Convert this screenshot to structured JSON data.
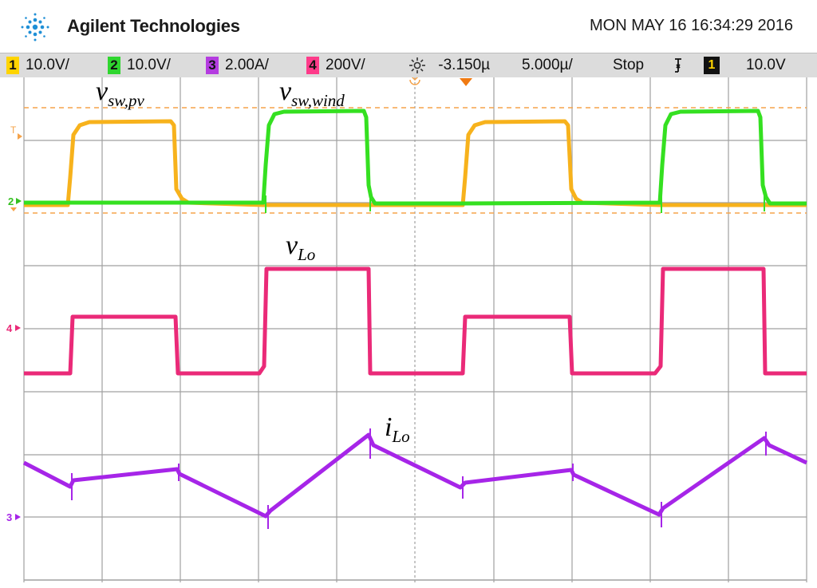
{
  "header": {
    "brand": "Agilent Technologies",
    "datetime": "MON MAY 16 16:34:29 2016",
    "logo_icon": "agilent-spark-logo"
  },
  "status_bar": {
    "ch1": {
      "num": "1",
      "scale": "10.0V/",
      "color": "#ffd400"
    },
    "ch2": {
      "num": "2",
      "scale": "10.0V/",
      "color": "#2fd62f"
    },
    "ch3": {
      "num": "3",
      "scale": "2.00A/",
      "color": "#b43ce0"
    },
    "ch4": {
      "num": "4",
      "scale": "200V/",
      "color": "#ff3b8a"
    },
    "delay_icon": "sun-icon",
    "delay": "-3.150µ",
    "timebase": "5.000µ/",
    "run_state": "Stop",
    "trigger_slope_icon": "falling-edge-icon",
    "trigger_channel": "1",
    "trigger_level": "10.0V"
  },
  "labels": {
    "vsw_pv": {
      "main": "v",
      "sub": "sw,pv"
    },
    "vsw_wind": {
      "main": "v",
      "sub": "sw,wind"
    },
    "vlo": {
      "main": "v",
      "sub": "Lo"
    },
    "ilo": {
      "main": "i",
      "sub": "Lo"
    }
  },
  "markers": {
    "trigger": "T",
    "ch2_ground": "2",
    "ch4_ground": "4",
    "ch3_ground": "3"
  },
  "colors": {
    "ch1": "#f7b21c",
    "ch2": "#35e021",
    "ch3": "#a625e8",
    "ch4": "#ea2a78",
    "grid": "#a0a0a0",
    "threshold": "#f5a34a"
  }
}
